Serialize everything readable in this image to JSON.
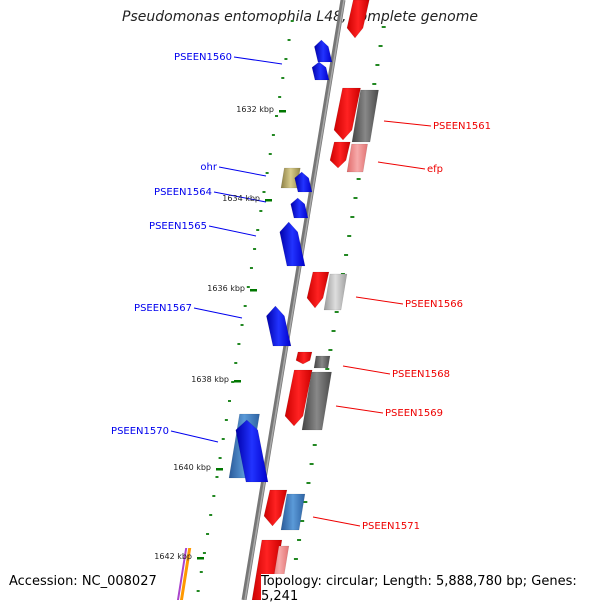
{
  "title": "Pseudomonas entomophila L48, complete genome",
  "footer": {
    "accession": "Accession: NC_008027",
    "topology": "Topology: circular; Length: 5,888,780 bp; Genes: 5,241"
  },
  "colors": {
    "forward": "#0000ee",
    "forward_light": "#3a6fb0",
    "reverse": "#ee0000",
    "reverse_light": "#f08a8a",
    "gray": "#666666",
    "light_gray": "#bbbbbb",
    "olive": "#b5a86a",
    "tick": "#007700"
  },
  "scale_ticks": [
    "1632 kbp",
    "1634 kbp",
    "1636 kbp",
    "1638 kbp",
    "1640 kbp",
    "1642 kbp"
  ],
  "gene_labels": [
    {
      "text": "PSEEN1560",
      "strand": "forward"
    },
    {
      "text": "PSEEN1561",
      "strand": "reverse"
    },
    {
      "text": "ohr",
      "strand": "forward"
    },
    {
      "text": "efp",
      "strand": "reverse"
    },
    {
      "text": "PSEEN1564",
      "strand": "forward"
    },
    {
      "text": "PSEEN1565",
      "strand": "forward"
    },
    {
      "text": "PSEEN1566",
      "strand": "reverse"
    },
    {
      "text": "PSEEN1567",
      "strand": "forward"
    },
    {
      "text": "PSEEN1568",
      "strand": "reverse"
    },
    {
      "text": "PSEEN1569",
      "strand": "reverse"
    },
    {
      "text": "PSEEN1570",
      "strand": "forward"
    },
    {
      "text": "PSEEN1571",
      "strand": "reverse"
    }
  ]
}
